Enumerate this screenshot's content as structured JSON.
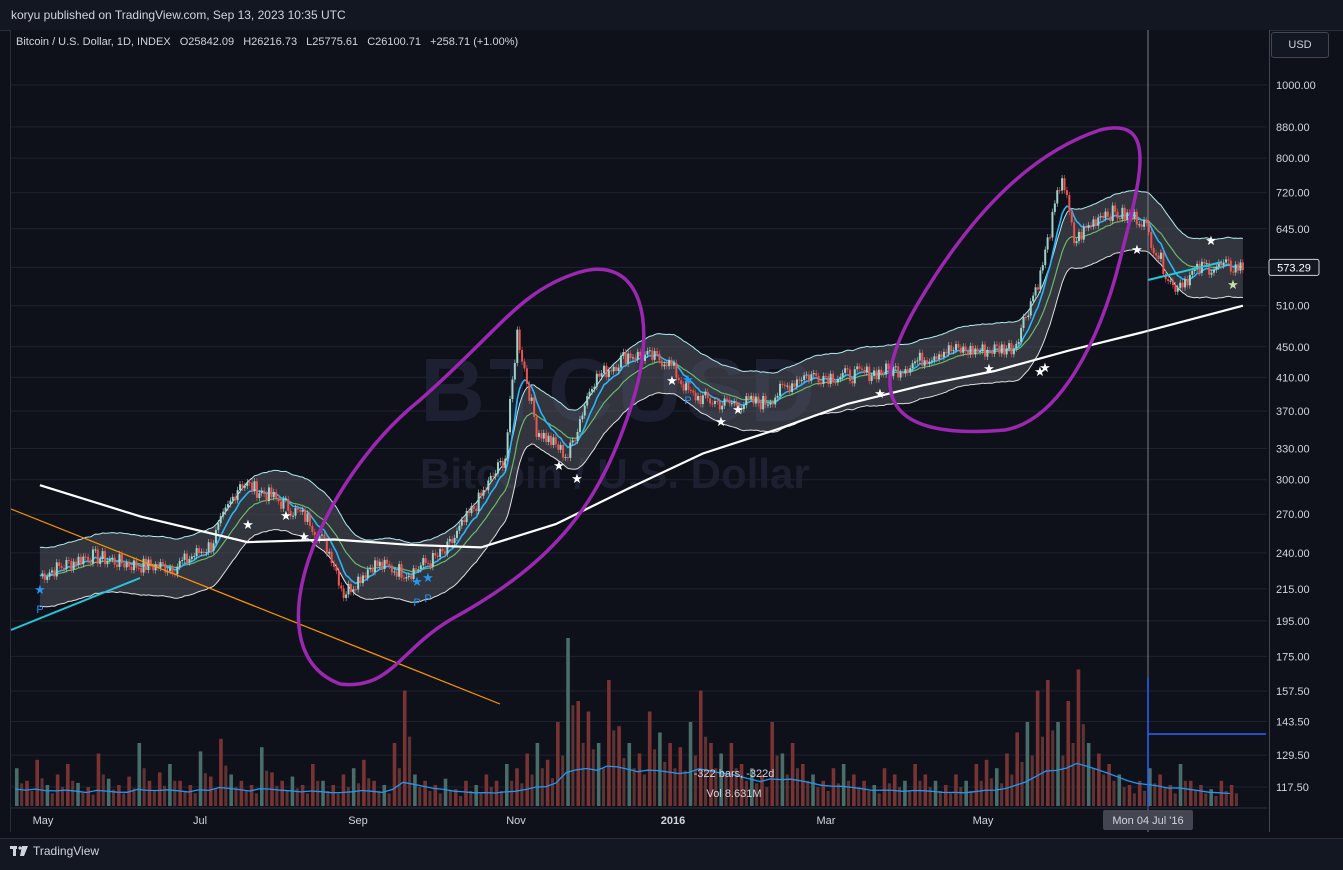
{
  "header": {
    "publisher": "koryu published on TradingView.com, Sep 13, 2023 10:35 UTC"
  },
  "legend": {
    "symbol": "Bitcoin / U.S. Dollar, 1D, INDEX",
    "open": "O25842.09",
    "high": "H26216.73",
    "low": "L25775.61",
    "close": "C26100.71",
    "change": "+258.71 (+1.00%)"
  },
  "currency_button": "USD",
  "watermark": {
    "line1": "BTCUSD",
    "line2": "Bitcoin / U.S. Dollar"
  },
  "footer": {
    "brand": "TradingView"
  },
  "measure": {
    "bars": "-322 bars, -322d",
    "vol": "Vol 8.631M"
  },
  "crosshair_date": "Mon 04 Jul '16",
  "last_price": "573.29",
  "colors": {
    "background": "#0f111a",
    "up": "#9fd3c7",
    "down": "#ef5350",
    "ma_white": "#ffffff",
    "band_fill": "#5d606b",
    "annotation_circle": "#9c27b0",
    "trend_orange": "#ff9800",
    "trend_cyan": "#26c6da",
    "volume_ma": "#2196f3"
  },
  "chart_data": {
    "type": "line",
    "title": "Bitcoin / U.S. Dollar, 1D, INDEX",
    "scale": "log",
    "ylim": [
      110,
      1100
    ],
    "y_ticks": [
      "1000.00",
      "880.00",
      "800.00",
      "720.00",
      "645.00",
      "573.29",
      "510.00",
      "450.00",
      "410.00",
      "370.00",
      "330.00",
      "300.00",
      "270.00",
      "240.00",
      "215.00",
      "195.00",
      "175.00",
      "157.50",
      "143.50",
      "129.50",
      "117.50"
    ],
    "x_ticks": [
      "May",
      "Jul",
      "Sep",
      "Nov",
      "2016",
      "Mar",
      "May"
    ],
    "series": [
      {
        "name": "price",
        "x": [
          "2015-04-20",
          "2015-05-10",
          "2015-05-30",
          "2015-06-15",
          "2015-06-30",
          "2015-07-12",
          "2015-07-25",
          "2015-08-10",
          "2015-08-19",
          "2015-08-24",
          "2015-09-05",
          "2015-09-20",
          "2015-10-05",
          "2015-10-20",
          "2015-10-30",
          "2015-11-04",
          "2015-11-12",
          "2015-11-25",
          "2015-12-05",
          "2015-12-20",
          "2016-01-05",
          "2016-01-15",
          "2016-01-28",
          "2016-02-15",
          "2016-03-01",
          "2016-03-20",
          "2016-04-10",
          "2016-04-28",
          "2016-05-15",
          "2016-05-28",
          "2016-06-08",
          "2016-06-17",
          "2016-06-22",
          "2016-07-04",
          "2016-07-20",
          "2016-08-02",
          "2016-08-15",
          "2016-08-31"
        ],
        "values": [
          224,
          238,
          231,
          230,
          246,
          298,
          285,
          265,
          238,
          212,
          232,
          226,
          240,
          285,
          322,
          470,
          350,
          322,
          405,
          440,
          432,
          388,
          378,
          380,
          412,
          412,
          420,
          445,
          445,
          450,
          560,
          760,
          620,
          680,
          665,
          540,
          575,
          573.29
        ]
      },
      {
        "name": "ma",
        "x": [
          "2015-04-20",
          "2015-06-01",
          "2015-07-15",
          "2015-08-20",
          "2015-09-20",
          "2015-10-20",
          "2015-11-20",
          "2015-12-20",
          "2016-01-20",
          "2016-02-20",
          "2016-03-20",
          "2016-04-20",
          "2016-05-20",
          "2016-06-20",
          "2016-07-20",
          "2016-08-31"
        ],
        "values": [
          295,
          268,
          248,
          250,
          246,
          244,
          262,
          292,
          325,
          350,
          378,
          400,
          418,
          445,
          470,
          510
        ]
      },
      {
        "name": "volume",
        "values": [
          0.18,
          0.12,
          0.22,
          0.1,
          0.15,
          0.2,
          0.11,
          0.09,
          0.25,
          0.13,
          0.1,
          0.14,
          0.3,
          0.12,
          0.16,
          0.2,
          0.12,
          0.1,
          0.26,
          0.14,
          0.32,
          0.15,
          0.12,
          0.1,
          0.28,
          0.16,
          0.12,
          0.14,
          0.1,
          0.2,
          0.12,
          0.1,
          0.15,
          0.18,
          0.22,
          0.12,
          0.1,
          0.3,
          0.55,
          0.15,
          0.12,
          0.1,
          0.13,
          0.08,
          0.12,
          0.1,
          0.15,
          0.12,
          0.2,
          0.18,
          0.25,
          0.3,
          0.22,
          0.4,
          0.8,
          0.5,
          0.45,
          0.3,
          0.6,
          0.38,
          0.3,
          0.25,
          0.45,
          0.35,
          0.3,
          0.28,
          0.4,
          0.55,
          0.3,
          0.25,
          0.3,
          0.2,
          0.18,
          0.15,
          0.4,
          0.25,
          0.3,
          0.2,
          0.15,
          0.12,
          0.18,
          0.2,
          0.15,
          0.12,
          0.1,
          0.18,
          0.15,
          0.12,
          0.2,
          0.15,
          0.12,
          0.1,
          0.15,
          0.12,
          0.2,
          0.22,
          0.18,
          0.25,
          0.35,
          0.4,
          0.55,
          0.6,
          0.4,
          0.5,
          0.65,
          0.3,
          0.25,
          0.2,
          0.15,
          0.1,
          0.12,
          0.18,
          0.15,
          0.1,
          0.2,
          0.12,
          0.1,
          0.08,
          0.12,
          0.1
        ]
      }
    ],
    "annotations": {
      "star_labels": [
        "P",
        "P",
        "P",
        "P"
      ]
    }
  }
}
